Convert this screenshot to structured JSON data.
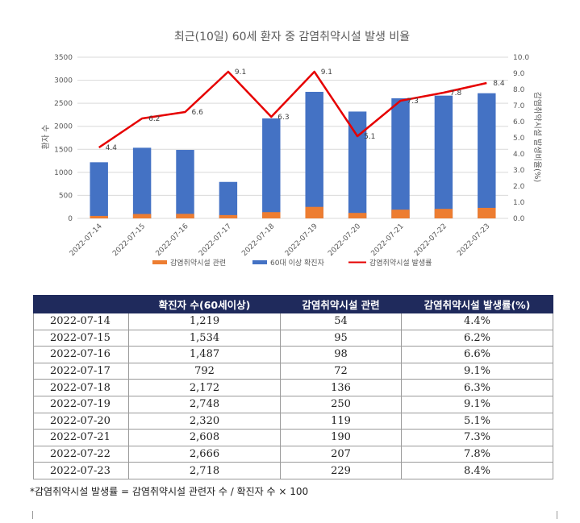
{
  "chart_data": {
    "type": "bar+line",
    "title": "최근(10일) 60세 환자 중 감염취약시설 발생 비율",
    "categories": [
      "2022-07-14",
      "2022-07-15",
      "2022-07-16",
      "2022-07-17",
      "2022-07-18",
      "2022-07-19",
      "2022-07-20",
      "2022-07-21",
      "2022-07-22",
      "2022-07-23"
    ],
    "series": [
      {
        "name": "감염취약시설 관련",
        "type": "bar",
        "axis": "left",
        "color": "#ed7d31",
        "values": [
          54,
          95,
          98,
          72,
          136,
          250,
          119,
          190,
          207,
          229
        ]
      },
      {
        "name": "60대 이상 확진자",
        "type": "bar",
        "axis": "left",
        "color": "#4472c4",
        "values": [
          1219,
          1534,
          1487,
          792,
          2172,
          2748,
          2320,
          2608,
          2666,
          2718
        ]
      },
      {
        "name": "감염취약시설 발생률",
        "type": "line",
        "axis": "right",
        "color": "#e60000",
        "values": [
          4.4,
          6.2,
          6.6,
          9.1,
          6.3,
          9.1,
          5.1,
          7.3,
          7.8,
          8.4
        ]
      }
    ],
    "ylabel": "환자 수",
    "y2label": "감염취약시설 발생비율(%)",
    "ylim": [
      0,
      3500
    ],
    "y2lim": [
      0,
      10
    ],
    "yticks": [
      "0",
      "500",
      "1000",
      "1500",
      "2000",
      "2500",
      "3000",
      "3500"
    ],
    "y2ticks": [
      "0.0",
      "1.0",
      "2.0",
      "3.0",
      "4.0",
      "5.0",
      "6.0",
      "7.0",
      "8.0",
      "9.0",
      "10.0"
    ],
    "line_labels": [
      "4.4",
      "6.2",
      "6.6",
      "9.1",
      "6.3",
      "9.1",
      "5.1",
      "7.3",
      "7.8",
      "8.4"
    ],
    "grid": true,
    "legend": "bottom"
  },
  "table": {
    "headers": [
      "",
      "확진자 수(60세이상)",
      "감염취약시설 관련",
      "감염취약시설 발생률(%)"
    ],
    "rows": [
      [
        "2022-07-14",
        "1,219",
        "54",
        "4.4%"
      ],
      [
        "2022-07-15",
        "1,534",
        "95",
        "6.2%"
      ],
      [
        "2022-07-16",
        "1,487",
        "98",
        "6.6%"
      ],
      [
        "2022-07-17",
        "792",
        "72",
        "9.1%"
      ],
      [
        "2022-07-18",
        "2,172",
        "136",
        "6.3%"
      ],
      [
        "2022-07-19",
        "2,748",
        "250",
        "9.1%"
      ],
      [
        "2022-07-20",
        "2,320",
        "119",
        "5.1%"
      ],
      [
        "2022-07-21",
        "2,608",
        "190",
        "7.3%"
      ],
      [
        "2022-07-22",
        "2,666",
        "207",
        "7.8%"
      ],
      [
        "2022-07-23",
        "2,718",
        "229",
        "8.4%"
      ]
    ]
  },
  "footnote": "*감염취약시설 발생률 = 감염취약시설 관련자 수 / 확진자 수 × 100"
}
